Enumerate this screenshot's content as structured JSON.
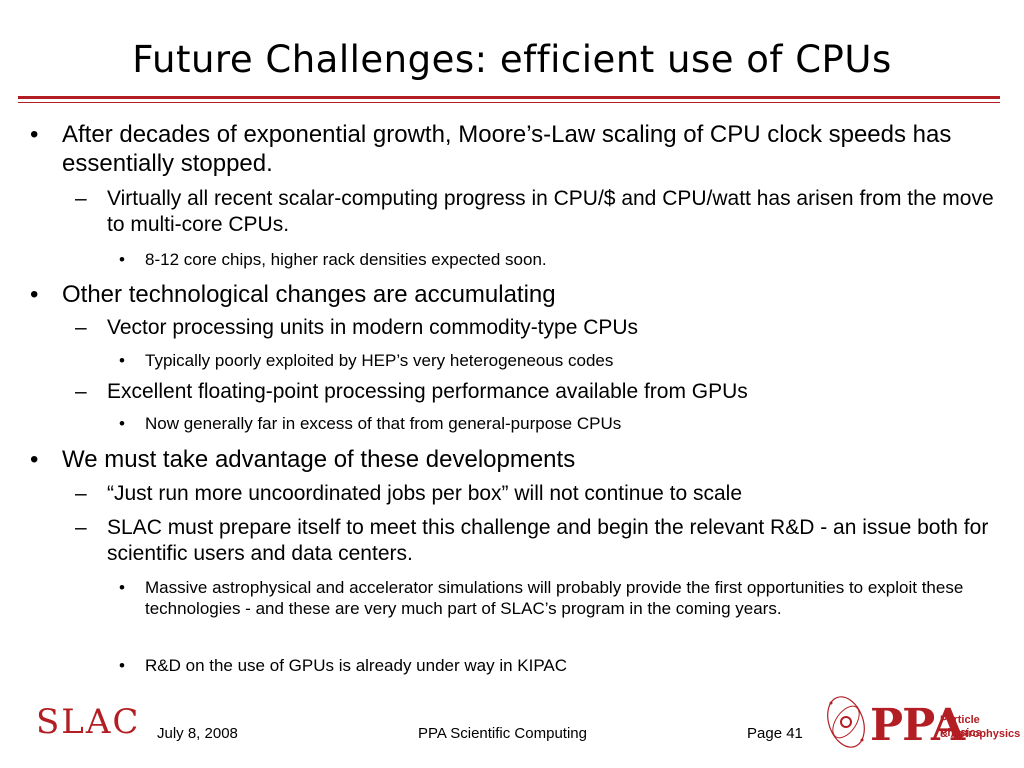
{
  "slide": {
    "title": "Future Challenges: efficient use of CPUs",
    "items": [
      {
        "mark": "•",
        "text": "After decades of exponential growth, Moore’s-Law scaling of CPU clock speeds has essentially stopped."
      },
      {
        "mark": "–",
        "text": "Virtually all recent scalar-computing progress in CPU/$ and CPU/watt has arisen from the move to multi-core CPUs."
      },
      {
        "mark": "•",
        "text": "8-12 core chips, higher rack densities expected soon."
      },
      {
        "mark": "•",
        "text": "Other technological changes are accumulating"
      },
      {
        "mark": "–",
        "text": "Vector processing units in modern commodity-type CPUs"
      },
      {
        "mark": "•",
        "text": "Typically poorly exploited by HEP’s very heterogeneous codes"
      },
      {
        "mark": "–",
        "text": "Excellent floating-point processing performance available from GPUs"
      },
      {
        "mark": "•",
        "text": "Now generally far in excess of that from general-purpose CPUs"
      },
      {
        "mark": "•",
        "text": "We must take advantage of these developments"
      },
      {
        "mark": "–",
        "text": "“Just run more uncoordinated jobs per box” will not continue to scale"
      },
      {
        "mark": "–",
        "text": "SLAC must prepare itself to meet this challenge and begin the relevant R&D - an issue both for scientific users and data centers."
      },
      {
        "mark": "•",
        "text": "Massive astrophysical and accelerator simulations will probably provide the first opportunities to exploit these technologies - and these are very much part of SLAC’s program in the coming years."
      },
      {
        "mark": "•",
        "text": "R&D on the use of GPUs is already under way in KIPAC"
      }
    ]
  },
  "footer": {
    "logo_left": "SLAC",
    "date": "July 8, 2008",
    "center": "PPA Scientific Computing",
    "page": "Page 41",
    "logo_right": "PPA",
    "logo_right_line1": "Particle Physics",
    "logo_right_line2": "& Astrophysics"
  },
  "colors": {
    "accent": "#b21e23"
  }
}
